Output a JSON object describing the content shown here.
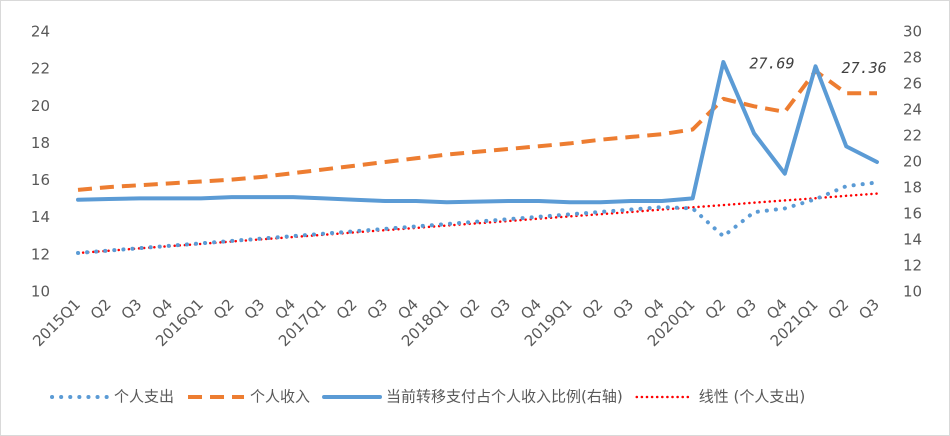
{
  "chart_data": {
    "type": "line",
    "categories": [
      "2015Q1",
      "Q2",
      "Q3",
      "Q4",
      "2016Q1",
      "Q2",
      "Q3",
      "Q4",
      "2017Q1",
      "Q2",
      "Q3",
      "Q4",
      "2018Q1",
      "Q2",
      "Q3",
      "Q4",
      "2019Q1",
      "Q2",
      "Q3",
      "Q4",
      "2020Q1",
      "Q2",
      "Q3",
      "Q4",
      "2021Q1",
      "Q2",
      "Q3"
    ],
    "series": [
      {
        "name": "个人支出",
        "color": "#5b9bd5",
        "style": "dotted",
        "values": [
          12.1,
          12.23,
          12.36,
          12.49,
          12.62,
          12.75,
          12.88,
          13.01,
          13.14,
          13.27,
          13.4,
          13.53,
          13.66,
          13.79,
          13.92,
          14.05,
          14.18,
          14.31,
          14.44,
          14.57,
          14.5,
          13.0,
          14.3,
          14.5,
          15.0,
          15.7,
          15.9
        ]
      },
      {
        "name": "个人收入",
        "color": "#ed7d31",
        "style": "dashed",
        "values": [
          15.5,
          15.65,
          15.75,
          15.85,
          15.95,
          16.05,
          16.2,
          16.4,
          16.6,
          16.8,
          17.0,
          17.2,
          17.4,
          17.55,
          17.7,
          17.85,
          18.0,
          18.2,
          18.35,
          18.5,
          18.75,
          20.4,
          20.0,
          19.7,
          21.9,
          20.7,
          20.7
        ]
      },
      {
        "name": "当前转移支付占个人收入比例(右轴)",
        "color": "#5b9bd5",
        "style": "solid",
        "axis": "y2",
        "values": [
          17.1,
          17.15,
          17.2,
          17.2,
          17.2,
          17.3,
          17.3,
          17.3,
          17.2,
          17.1,
          17.0,
          17.0,
          16.9,
          16.95,
          17.0,
          17.0,
          16.9,
          16.9,
          17.0,
          17.0,
          17.2,
          27.69,
          22.2,
          19.1,
          27.36,
          21.2,
          20.0
        ],
        "labeled": [
          21,
          24
        ]
      },
      {
        "name": "线性 (个人支出)",
        "color": "#ff0000",
        "style": "fine-dotted",
        "values": [
          12.1,
          12.22,
          12.35,
          12.47,
          12.59,
          12.72,
          12.84,
          12.96,
          13.08,
          13.21,
          13.33,
          13.45,
          13.58,
          13.7,
          13.82,
          13.95,
          14.07,
          14.19,
          14.31,
          14.44,
          14.56,
          14.68,
          14.81,
          14.93,
          15.05,
          15.18,
          15.3
        ]
      }
    ],
    "ylim": [
      10,
      24
    ],
    "yticks": [
      10,
      12,
      14,
      16,
      18,
      20,
      22,
      24
    ],
    "y2lim": [
      10,
      30
    ],
    "y2ticks": [
      10,
      12,
      14,
      16,
      18,
      20,
      22,
      24,
      26,
      28,
      30
    ],
    "legend": "bottom",
    "grid": false
  }
}
